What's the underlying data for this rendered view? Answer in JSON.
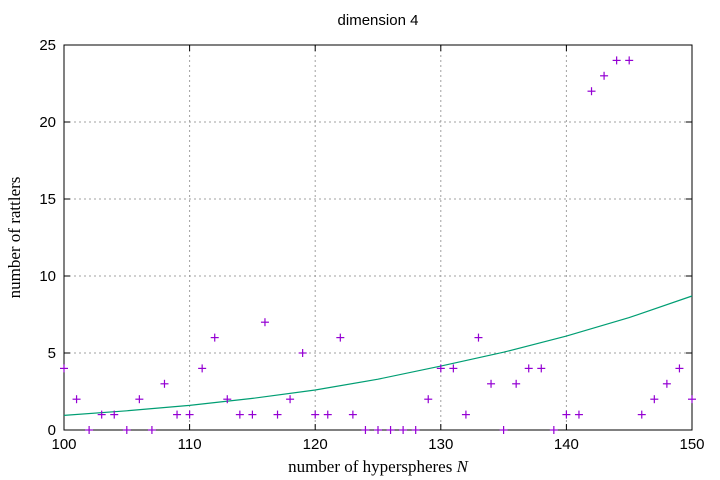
{
  "chart_data": {
    "type": "scatter",
    "title": "dimension 4",
    "xlabel": "number of hyperspheres",
    "xlabel_var": "N",
    "ylabel": "number of rattlers",
    "xlim": [
      100,
      150
    ],
    "ylim": [
      0,
      25
    ],
    "xticks": [
      100,
      110,
      120,
      130,
      140,
      150
    ],
    "yticks": [
      0,
      5,
      10,
      15,
      20,
      25
    ],
    "grid": true,
    "colors": {
      "points": "#9400d3",
      "fit": "#009e73"
    },
    "series": [
      {
        "marker": "plus",
        "x": [
          100,
          101,
          102,
          103,
          104,
          105,
          106,
          107,
          108,
          109,
          110,
          111,
          112,
          113,
          114,
          115,
          116,
          117,
          118,
          119,
          120,
          121,
          122,
          123,
          124,
          125,
          126,
          127,
          128,
          129,
          130,
          131,
          132,
          133,
          134,
          135,
          136,
          137,
          138,
          139,
          140,
          141,
          142,
          143,
          144,
          145,
          146,
          147,
          148,
          149,
          150
        ],
        "y": [
          4,
          2,
          0,
          1,
          1,
          0,
          2,
          0,
          3,
          1,
          1,
          4,
          6,
          2,
          1,
          1,
          7,
          1,
          2,
          5,
          1,
          1,
          6,
          1,
          0,
          0,
          0,
          0,
          0,
          2,
          4,
          4,
          1,
          6,
          3,
          0,
          3,
          4,
          4,
          0,
          1,
          1,
          22,
          23,
          24,
          24,
          1,
          2,
          3,
          4,
          2
        ]
      },
      {
        "line": "exponential-fit",
        "x": [
          100,
          105,
          110,
          115,
          120,
          125,
          130,
          135,
          140,
          145,
          150
        ],
        "y": [
          0.95,
          1.25,
          1.6,
          2.05,
          2.6,
          3.3,
          4.15,
          5.05,
          6.1,
          7.3,
          8.7
        ]
      }
    ]
  }
}
